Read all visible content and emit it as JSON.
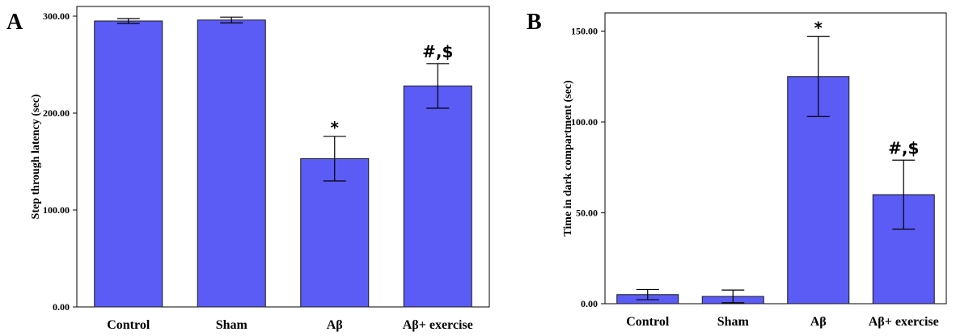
{
  "figure": {
    "colors": {
      "bar": "#5b5bf5",
      "bar_stroke": "#1a1a1a",
      "axis": "#000000"
    }
  },
  "chart_data": [
    {
      "panel": "A",
      "type": "bar",
      "categories": [
        "Control",
        "Sham",
        "Aβ",
        "Aβ+ exercise"
      ],
      "values": [
        295,
        296,
        153,
        228
      ],
      "errors": [
        2.5,
        3,
        23,
        23
      ],
      "annotations": [
        "",
        "",
        "*",
        "#,$"
      ],
      "ylabel": "Step through latency (sec)",
      "ylim": [
        0,
        310
      ],
      "yticks": [
        0,
        100,
        200,
        300
      ],
      "ytick_labels": [
        "0.00",
        "100.00",
        "200.00",
        "300.00"
      ]
    },
    {
      "panel": "B",
      "type": "bar",
      "categories": [
        "Control",
        "Sham",
        "Aβ",
        "Aβ+ exercise"
      ],
      "values": [
        5,
        4,
        125,
        60
      ],
      "errors": [
        2.8,
        3.5,
        22,
        19
      ],
      "annotations": [
        "",
        "",
        "*",
        "#,$"
      ],
      "ylabel": "Time in dark compartment (sec)",
      "ylim": [
        0,
        160
      ],
      "yticks": [
        0,
        50,
        100,
        150
      ],
      "ytick_labels": [
        "0.00",
        "50.00",
        "100.00",
        "150.00"
      ]
    }
  ]
}
